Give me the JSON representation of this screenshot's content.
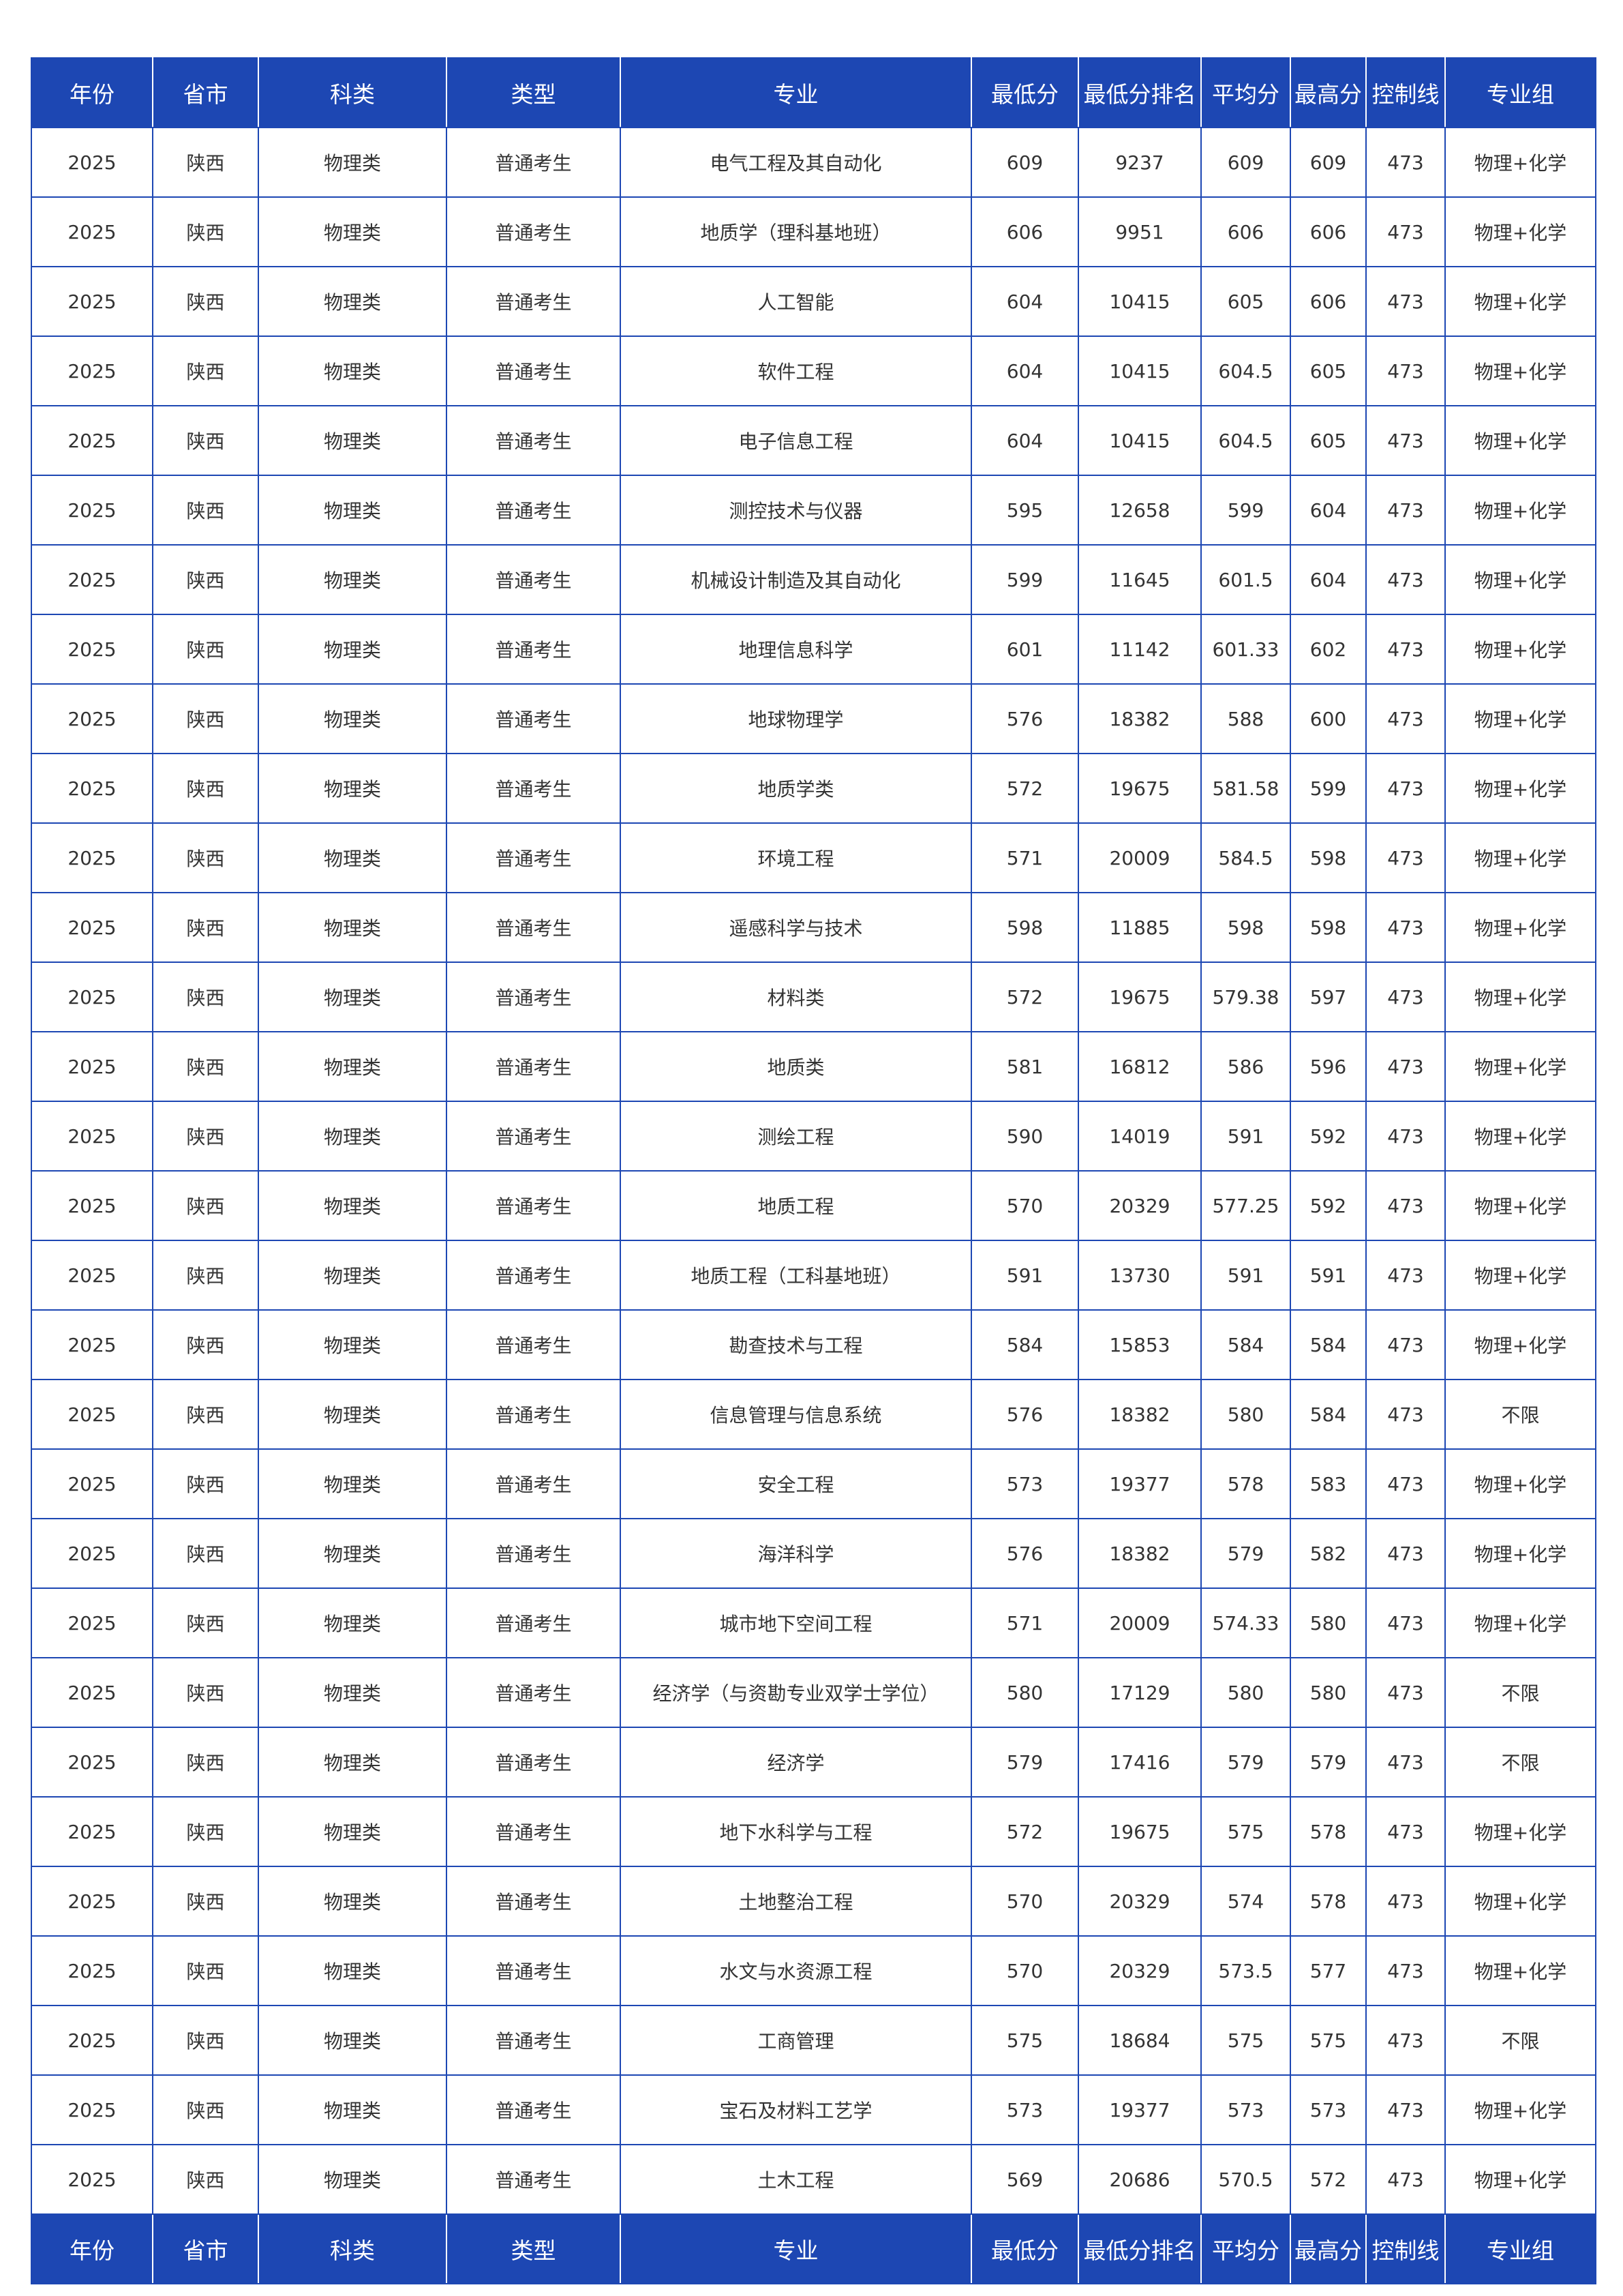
{
  "colors": {
    "header_bg": "#1d47b3",
    "border": "#1d47b3",
    "text": "#333333"
  },
  "headers": [
    "年份",
    "省市",
    "科类",
    "类型",
    "专业",
    "最低分",
    "最低分排名",
    "平均分",
    "最高分",
    "控制线",
    "专业组"
  ],
  "rows": [
    [
      "2025",
      "陕西",
      "物理类",
      "普通考生",
      "电气工程及其自动化",
      "609",
      "9237",
      "609",
      "609",
      "473",
      "物理+化学"
    ],
    [
      "2025",
      "陕西",
      "物理类",
      "普通考生",
      "地质学（理科基地班）",
      "606",
      "9951",
      "606",
      "606",
      "473",
      "物理+化学"
    ],
    [
      "2025",
      "陕西",
      "物理类",
      "普通考生",
      "人工智能",
      "604",
      "10415",
      "605",
      "606",
      "473",
      "物理+化学"
    ],
    [
      "2025",
      "陕西",
      "物理类",
      "普通考生",
      "软件工程",
      "604",
      "10415",
      "604.5",
      "605",
      "473",
      "物理+化学"
    ],
    [
      "2025",
      "陕西",
      "物理类",
      "普通考生",
      "电子信息工程",
      "604",
      "10415",
      "604.5",
      "605",
      "473",
      "物理+化学"
    ],
    [
      "2025",
      "陕西",
      "物理类",
      "普通考生",
      "测控技术与仪器",
      "595",
      "12658",
      "599",
      "604",
      "473",
      "物理+化学"
    ],
    [
      "2025",
      "陕西",
      "物理类",
      "普通考生",
      "机械设计制造及其自动化",
      "599",
      "11645",
      "601.5",
      "604",
      "473",
      "物理+化学"
    ],
    [
      "2025",
      "陕西",
      "物理类",
      "普通考生",
      "地理信息科学",
      "601",
      "11142",
      "601.33",
      "602",
      "473",
      "物理+化学"
    ],
    [
      "2025",
      "陕西",
      "物理类",
      "普通考生",
      "地球物理学",
      "576",
      "18382",
      "588",
      "600",
      "473",
      "物理+化学"
    ],
    [
      "2025",
      "陕西",
      "物理类",
      "普通考生",
      "地质学类",
      "572",
      "19675",
      "581.58",
      "599",
      "473",
      "物理+化学"
    ],
    [
      "2025",
      "陕西",
      "物理类",
      "普通考生",
      "环境工程",
      "571",
      "20009",
      "584.5",
      "598",
      "473",
      "物理+化学"
    ],
    [
      "2025",
      "陕西",
      "物理类",
      "普通考生",
      "遥感科学与技术",
      "598",
      "11885",
      "598",
      "598",
      "473",
      "物理+化学"
    ],
    [
      "2025",
      "陕西",
      "物理类",
      "普通考生",
      "材料类",
      "572",
      "19675",
      "579.38",
      "597",
      "473",
      "物理+化学"
    ],
    [
      "2025",
      "陕西",
      "物理类",
      "普通考生",
      "地质类",
      "581",
      "16812",
      "586",
      "596",
      "473",
      "物理+化学"
    ],
    [
      "2025",
      "陕西",
      "物理类",
      "普通考生",
      "测绘工程",
      "590",
      "14019",
      "591",
      "592",
      "473",
      "物理+化学"
    ],
    [
      "2025",
      "陕西",
      "物理类",
      "普通考生",
      "地质工程",
      "570",
      "20329",
      "577.25",
      "592",
      "473",
      "物理+化学"
    ],
    [
      "2025",
      "陕西",
      "物理类",
      "普通考生",
      "地质工程（工科基地班）",
      "591",
      "13730",
      "591",
      "591",
      "473",
      "物理+化学"
    ],
    [
      "2025",
      "陕西",
      "物理类",
      "普通考生",
      "勘查技术与工程",
      "584",
      "15853",
      "584",
      "584",
      "473",
      "物理+化学"
    ],
    [
      "2025",
      "陕西",
      "物理类",
      "普通考生",
      "信息管理与信息系统",
      "576",
      "18382",
      "580",
      "584",
      "473",
      "不限"
    ],
    [
      "2025",
      "陕西",
      "物理类",
      "普通考生",
      "安全工程",
      "573",
      "19377",
      "578",
      "583",
      "473",
      "物理+化学"
    ],
    [
      "2025",
      "陕西",
      "物理类",
      "普通考生",
      "海洋科学",
      "576",
      "18382",
      "579",
      "582",
      "473",
      "物理+化学"
    ],
    [
      "2025",
      "陕西",
      "物理类",
      "普通考生",
      "城市地下空间工程",
      "571",
      "20009",
      "574.33",
      "580",
      "473",
      "物理+化学"
    ],
    [
      "2025",
      "陕西",
      "物理类",
      "普通考生",
      "经济学（与资勘专业双学士学位）",
      "580",
      "17129",
      "580",
      "580",
      "473",
      "不限"
    ],
    [
      "2025",
      "陕西",
      "物理类",
      "普通考生",
      "经济学",
      "579",
      "17416",
      "579",
      "579",
      "473",
      "不限"
    ],
    [
      "2025",
      "陕西",
      "物理类",
      "普通考生",
      "地下水科学与工程",
      "572",
      "19675",
      "575",
      "578",
      "473",
      "物理+化学"
    ],
    [
      "2025",
      "陕西",
      "物理类",
      "普通考生",
      "土地整治工程",
      "570",
      "20329",
      "574",
      "578",
      "473",
      "物理+化学"
    ],
    [
      "2025",
      "陕西",
      "物理类",
      "普通考生",
      "水文与水资源工程",
      "570",
      "20329",
      "573.5",
      "577",
      "473",
      "物理+化学"
    ],
    [
      "2025",
      "陕西",
      "物理类",
      "普通考生",
      "工商管理",
      "575",
      "18684",
      "575",
      "575",
      "473",
      "不限"
    ],
    [
      "2025",
      "陕西",
      "物理类",
      "普通考生",
      "宝石及材料工艺学",
      "573",
      "19377",
      "573",
      "573",
      "473",
      "物理+化学"
    ],
    [
      "2025",
      "陕西",
      "物理类",
      "普通考生",
      "土木工程",
      "569",
      "20686",
      "570.5",
      "572",
      "473",
      "物理+化学"
    ]
  ]
}
